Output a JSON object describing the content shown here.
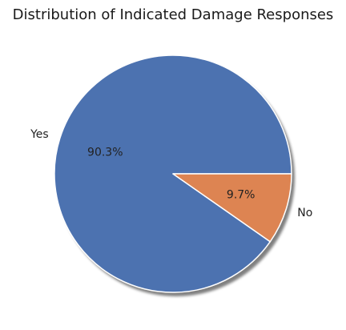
{
  "chart_data": {
    "type": "pie",
    "title": "Distribution of Indicated Damage Responses",
    "slices": [
      {
        "label": "Yes",
        "value": 90.3,
        "pct_label": "90.3%",
        "color": "#4c72b0"
      },
      {
        "label": "No",
        "value": 9.7,
        "pct_label": "9.7%",
        "color": "#dd8452"
      }
    ],
    "start_angle_deg": 0,
    "direction": "counterclockwise",
    "shadow": true,
    "edge_color": "#ffffff"
  }
}
